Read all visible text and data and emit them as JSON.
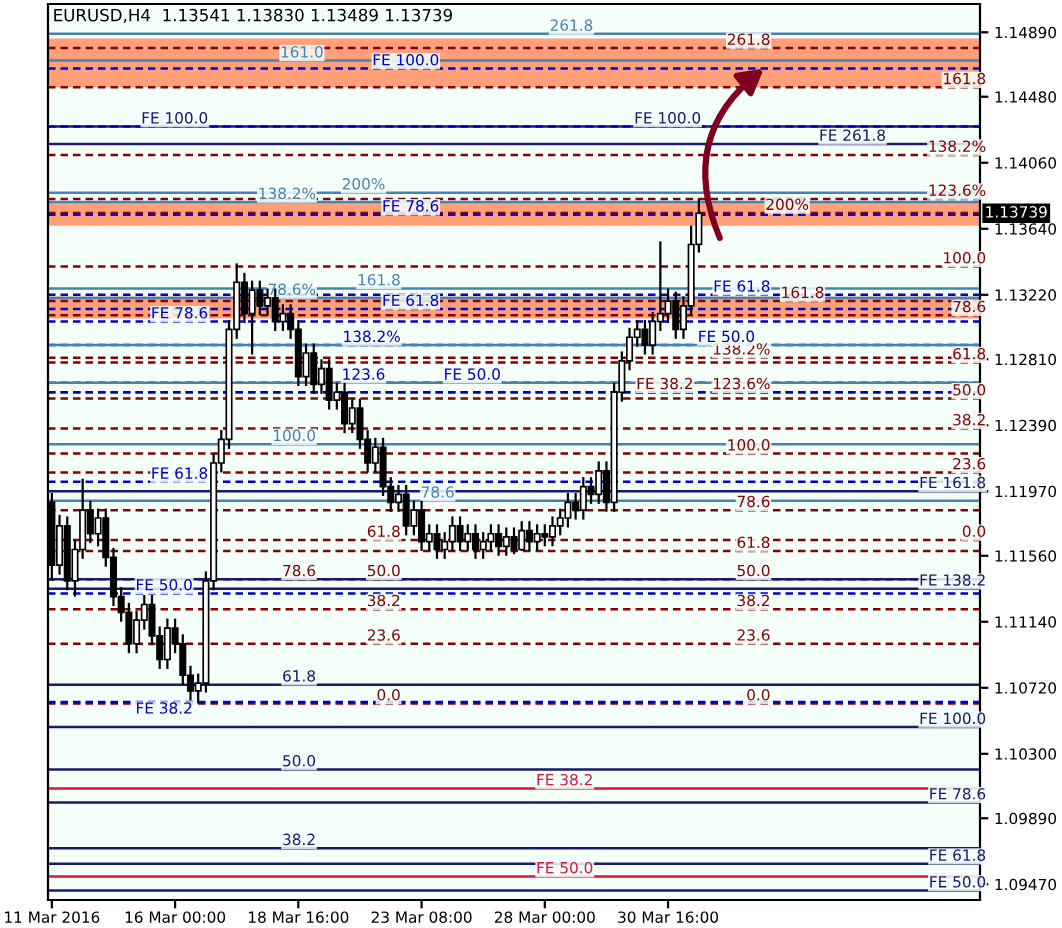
{
  "chart_data": {
    "type": "candlestick",
    "title": "EURUSD,H4  1.13541 1.13830 1.13489 1.13739",
    "grid": false,
    "categories": [
      "11 Mar 2016",
      null,
      null,
      null,
      null,
      null,
      null,
      null,
      null,
      null,
      null,
      null,
      null,
      null,
      null,
      null,
      "16 Mar 00:00",
      null,
      null,
      null,
      null,
      null,
      null,
      null,
      null,
      null,
      null,
      null,
      null,
      null,
      null,
      null,
      "18 Mar 16:00",
      null,
      null,
      null,
      null,
      null,
      null,
      null,
      null,
      null,
      null,
      null,
      null,
      null,
      null,
      null,
      "23 Mar 08:00",
      null,
      null,
      null,
      null,
      null,
      null,
      null,
      null,
      null,
      null,
      null,
      null,
      null,
      null,
      null,
      "28 Mar 00:00",
      null,
      null,
      null,
      null,
      null,
      null,
      null,
      null,
      null,
      null,
      null,
      null,
      null,
      null,
      null,
      "30 Mar 16:00",
      null,
      null,
      null,
      null,
      null,
      null,
      null,
      null,
      null,
      null,
      null,
      null,
      null,
      null,
      null,
      null,
      null,
      null,
      null,
      null,
      null,
      null,
      null,
      null,
      null,
      null,
      null,
      null,
      null,
      null,
      null,
      null,
      null,
      null,
      null,
      null,
      null,
      null,
      null,
      null
    ],
    "ohlc": [
      [
        1.119,
        1.1196,
        1.114,
        1.115
      ],
      [
        1.115,
        1.1182,
        1.1144,
        1.1175
      ],
      [
        1.1175,
        1.1181,
        1.1134,
        1.114
      ],
      [
        1.114,
        1.1166,
        1.113,
        1.116
      ],
      [
        1.116,
        1.1205,
        1.1154,
        1.1185
      ],
      [
        1.1185,
        1.1191,
        1.1164,
        1.117
      ],
      [
        1.117,
        1.1186,
        1.1162,
        1.118
      ],
      [
        1.118,
        1.1186,
        1.1149,
        1.1155
      ],
      [
        1.1155,
        1.1161,
        1.1124,
        1.113
      ],
      [
        1.113,
        1.1136,
        1.1114,
        1.112
      ],
      [
        1.112,
        1.1126,
        1.1094,
        1.11
      ],
      [
        1.11,
        1.1121,
        1.1094,
        1.1115
      ],
      [
        1.1115,
        1.1131,
        1.1109,
        1.1125
      ],
      [
        1.1125,
        1.1131,
        1.1099,
        1.1105
      ],
      [
        1.1105,
        1.1111,
        1.1084,
        1.109
      ],
      [
        1.109,
        1.1116,
        1.1084,
        1.111
      ],
      [
        1.111,
        1.1116,
        1.1094,
        1.11
      ],
      [
        1.11,
        1.1106,
        1.1074,
        1.108
      ],
      [
        1.108,
        1.1086,
        1.1064,
        1.107
      ],
      [
        1.107,
        1.1081,
        1.1062,
        1.1075
      ],
      [
        1.1075,
        1.1146,
        1.1069,
        1.114
      ],
      [
        1.114,
        1.1221,
        1.1134,
        1.1215
      ],
      [
        1.1215,
        1.1236,
        1.1209,
        1.123
      ],
      [
        1.123,
        1.1306,
        1.1224,
        1.13
      ],
      [
        1.13,
        1.1342,
        1.1294,
        1.133
      ],
      [
        1.133,
        1.1336,
        1.1304,
        1.131
      ],
      [
        1.131,
        1.1331,
        1.1284,
        1.1325
      ],
      [
        1.1325,
        1.1331,
        1.1309,
        1.1315
      ],
      [
        1.1315,
        1.1326,
        1.1309,
        1.132
      ],
      [
        1.132,
        1.1326,
        1.1299,
        1.1305
      ],
      [
        1.1305,
        1.1316,
        1.1299,
        1.131
      ],
      [
        1.131,
        1.1316,
        1.1294,
        1.13
      ],
      [
        1.13,
        1.1306,
        1.1264,
        1.127
      ],
      [
        1.127,
        1.1291,
        1.1264,
        1.1285
      ],
      [
        1.1285,
        1.1291,
        1.1259,
        1.1265
      ],
      [
        1.1265,
        1.1281,
        1.1259,
        1.1275
      ],
      [
        1.1275,
        1.1281,
        1.1249,
        1.1255
      ],
      [
        1.1255,
        1.1266,
        1.1249,
        1.126
      ],
      [
        1.126,
        1.1266,
        1.1234,
        1.124
      ],
      [
        1.124,
        1.1256,
        1.1234,
        1.125
      ],
      [
        1.125,
        1.1256,
        1.1224,
        1.123
      ],
      [
        1.123,
        1.1236,
        1.1209,
        1.1215
      ],
      [
        1.1215,
        1.1231,
        1.1209,
        1.1225
      ],
      [
        1.1225,
        1.1231,
        1.1194,
        1.12
      ],
      [
        1.12,
        1.1206,
        1.1184,
        1.119
      ],
      [
        1.119,
        1.1201,
        1.1184,
        1.1195
      ],
      [
        1.1195,
        1.1201,
        1.1169,
        1.1175
      ],
      [
        1.1175,
        1.1191,
        1.1169,
        1.1185
      ],
      [
        1.1185,
        1.1191,
        1.1159,
        1.1165
      ],
      [
        1.1165,
        1.1176,
        1.1159,
        1.117
      ],
      [
        1.117,
        1.1176,
        1.1154,
        1.116
      ],
      [
        1.116,
        1.1171,
        1.1154,
        1.1165
      ],
      [
        1.1165,
        1.1181,
        1.1159,
        1.1175
      ],
      [
        1.1175,
        1.1181,
        1.1159,
        1.1165
      ],
      [
        1.1165,
        1.1176,
        1.1159,
        1.117
      ],
      [
        1.117,
        1.1176,
        1.1154,
        1.116
      ],
      [
        1.116,
        1.1171,
        1.1154,
        1.1165
      ],
      [
        1.1165,
        1.1176,
        1.1159,
        1.117
      ],
      [
        1.117,
        1.1176,
        1.1156,
        1.1162
      ],
      [
        1.1162,
        1.1174,
        1.1156,
        1.1168
      ],
      [
        1.1168,
        1.1174,
        1.1157,
        1.116
      ],
      [
        1.116,
        1.1178,
        1.1159,
        1.1172
      ],
      [
        1.1172,
        1.1178,
        1.1159,
        1.1165
      ],
      [
        1.1165,
        1.1176,
        1.1159,
        1.117
      ],
      [
        1.117,
        1.1176,
        1.1162,
        1.1168
      ],
      [
        1.1168,
        1.1181,
        1.1162,
        1.1175
      ],
      [
        1.1175,
        1.1186,
        1.1169,
        1.118
      ],
      [
        1.118,
        1.1196,
        1.1174,
        1.119
      ],
      [
        1.119,
        1.1196,
        1.1179,
        1.1185
      ],
      [
        1.1185,
        1.1206,
        1.1179,
        1.12
      ],
      [
        1.12,
        1.1206,
        1.1189,
        1.1195
      ],
      [
        1.1195,
        1.1216,
        1.1189,
        1.121
      ],
      [
        1.121,
        1.1216,
        1.1184,
        1.119
      ],
      [
        1.119,
        1.1266,
        1.1184,
        1.126
      ],
      [
        1.126,
        1.1286,
        1.1254,
        1.128
      ],
      [
        1.128,
        1.1301,
        1.1274,
        1.1295
      ],
      [
        1.1295,
        1.1306,
        1.1289,
        1.13
      ],
      [
        1.13,
        1.1306,
        1.1284,
        1.129
      ],
      [
        1.129,
        1.1311,
        1.1284,
        1.1305
      ],
      [
        1.1305,
        1.1356,
        1.1299,
        1.131
      ],
      [
        1.131,
        1.1326,
        1.1304,
        1.1318
      ],
      [
        1.1318,
        1.1324,
        1.1294,
        1.13
      ],
      [
        1.13,
        1.1321,
        1.1294,
        1.1315
      ],
      [
        1.1315,
        1.1366,
        1.1309,
        1.1354
      ],
      [
        1.13541,
        1.1383,
        1.13489,
        1.13739
      ],
      null,
      null,
      null,
      null,
      null,
      null,
      null,
      null,
      null,
      null,
      null,
      null,
      null,
      null,
      null,
      null,
      null,
      null,
      null,
      null,
      null,
      null,
      null,
      null,
      null,
      null,
      null,
      null,
      null,
      null,
      null,
      null,
      null,
      null,
      null,
      null
    ],
    "ylim": [
      1.0937,
      1.1507
    ],
    "yticks": [
      {
        "value": 1.1489,
        "label": "1.14890"
      },
      {
        "value": 1.1448,
        "label": "1.14480"
      },
      {
        "value": 1.1406,
        "label": "1.14060"
      },
      {
        "value": 1.1364,
        "label": "1.13640"
      },
      {
        "value": 1.1322,
        "label": "1.13220"
      },
      {
        "value": 1.1281,
        "label": "1.12810"
      },
      {
        "value": 1.1239,
        "label": "1.12390"
      },
      {
        "value": 1.1197,
        "label": "1.11970"
      },
      {
        "value": 1.1156,
        "label": "1.11560"
      },
      {
        "value": 1.1114,
        "label": "1.11140"
      },
      {
        "value": 1.1072,
        "label": "1.10720"
      },
      {
        "value": 1.103,
        "label": "1.10300"
      },
      {
        "value": 1.0989,
        "label": "1.09890"
      },
      {
        "value": 1.0947,
        "label": "1.09470"
      }
    ],
    "bands": [
      {
        "axis": "y",
        "from": 1.1454,
        "to": 1.1485,
        "color": "#ffa07a"
      },
      {
        "axis": "y",
        "from": 1.1307,
        "to": 1.1321,
        "color": "#ffa07a"
      },
      {
        "axis": "y",
        "from": 1.1366,
        "to": 1.1381,
        "color": "#ffa07a"
      }
    ],
    "ref_lines": [
      {
        "axis": "y",
        "value": 1.1479,
        "color": "#8b0000",
        "line_style": "dashed"
      },
      {
        "axis": "y",
        "value": 1.1454,
        "color": "#8b0000",
        "line_style": "dashed"
      },
      {
        "axis": "y",
        "value": 1.1411,
        "color": "#8b0000",
        "line_style": "dashed"
      },
      {
        "axis": "y",
        "value": 1.1383,
        "color": "#8b0000",
        "line_style": "dashed"
      },
      {
        "axis": "y",
        "value": 1.1374,
        "color": "#8b0000",
        "line_style": "dashed"
      },
      {
        "axis": "y",
        "value": 1.134,
        "color": "#8b0000",
        "line_style": "dashed"
      },
      {
        "axis": "y",
        "value": 1.1318,
        "color": "#8b0000",
        "line_style": "dashed"
      },
      {
        "axis": "y",
        "value": 1.1309,
        "color": "#8b0000",
        "line_style": "dashed"
      },
      {
        "axis": "y",
        "value": 1.1282,
        "color": "#8b0000",
        "line_style": "dashed"
      },
      {
        "axis": "y",
        "value": 1.1279,
        "color": "#8b0000",
        "line_style": "dashed"
      },
      {
        "axis": "y",
        "value": 1.126,
        "color": "#8b0000",
        "line_style": "dashed"
      },
      {
        "axis": "y",
        "value": 1.1256,
        "color": "#8b0000",
        "line_style": "dashed"
      },
      {
        "axis": "y",
        "value": 1.1237,
        "color": "#8b0000",
        "line_style": "dashed"
      },
      {
        "axis": "y",
        "value": 1.1221,
        "color": "#8b0000",
        "line_style": "dashed"
      },
      {
        "axis": "y",
        "value": 1.1209,
        "color": "#8b0000",
        "line_style": "dashed"
      },
      {
        "axis": "y",
        "value": 1.1185,
        "color": "#8b0000",
        "line_style": "dashed"
      },
      {
        "axis": "y",
        "value": 1.1166,
        "color": "#8b0000",
        "line_style": "dashed"
      },
      {
        "axis": "y",
        "value": 1.1159,
        "color": "#8b0000",
        "line_style": "dashed"
      },
      {
        "axis": "y",
        "value": 1.1141,
        "color": "#8b0000",
        "line_style": "dashed"
      },
      {
        "axis": "y",
        "value": 1.1122,
        "color": "#8b0000",
        "line_style": "dashed"
      },
      {
        "axis": "y",
        "value": 1.11,
        "color": "#8b0000",
        "line_style": "dashed"
      },
      {
        "axis": "y",
        "value": 1.1062,
        "color": "#8b0000",
        "line_style": "dashed"
      },
      {
        "axis": "y",
        "value": 1.1418,
        "color": "#191970",
        "line_style": "solid"
      },
      {
        "axis": "y",
        "value": 1.1197,
        "color": "#191970",
        "line_style": "solid"
      },
      {
        "axis": "y",
        "value": 1.1135,
        "color": "#191970",
        "line_style": "solid"
      },
      {
        "axis": "y",
        "value": 1.1047,
        "color": "#191970",
        "line_style": "solid"
      },
      {
        "axis": "y",
        "value": 1.0999,
        "color": "#191970",
        "line_style": "solid"
      },
      {
        "axis": "y",
        "value": 1.096,
        "color": "#191970",
        "line_style": "solid"
      },
      {
        "axis": "y",
        "value": 1.0943,
        "color": "#191970",
        "line_style": "solid"
      },
      {
        "axis": "y",
        "value": 1.1429,
        "color": "#191970",
        "line_style": "solid"
      },
      {
        "axis": "y",
        "value": 1.1074,
        "color": "#191970",
        "line_style": "solid"
      },
      {
        "axis": "y",
        "value": 1.102,
        "color": "#191970",
        "line_style": "solid"
      },
      {
        "axis": "y",
        "value": 1.097,
        "color": "#191970",
        "line_style": "solid"
      },
      {
        "axis": "y",
        "value": 1.1141,
        "color": "#191970",
        "line_style": "solid"
      },
      {
        "axis": "y",
        "value": 1.1466,
        "color": "#0000cd",
        "line_style": "dashed"
      },
      {
        "axis": "y",
        "value": 1.1429,
        "color": "#0000cd",
        "line_style": "dashed"
      },
      {
        "axis": "y",
        "value": 1.1373,
        "color": "#0000cd",
        "line_style": "dashed"
      },
      {
        "axis": "y",
        "value": 1.1305,
        "color": "#0000cd",
        "line_style": "dashed"
      },
      {
        "axis": "y",
        "value": 1.1313,
        "color": "#0000cd",
        "line_style": "dashed"
      },
      {
        "axis": "y",
        "value": 1.1322,
        "color": "#0000cd",
        "line_style": "dashed"
      },
      {
        "axis": "y",
        "value": 1.1266,
        "color": "#0000cd",
        "line_style": "dashed"
      },
      {
        "axis": "y",
        "value": 1.129,
        "color": "#0000cd",
        "line_style": "dashed"
      },
      {
        "axis": "y",
        "value": 1.126,
        "color": "#0000cd",
        "line_style": "dashed"
      },
      {
        "axis": "y",
        "value": 1.1203,
        "color": "#0000cd",
        "line_style": "dashed"
      },
      {
        "axis": "y",
        "value": 1.1132,
        "color": "#0000cd",
        "line_style": "dashed"
      },
      {
        "axis": "y",
        "value": 1.1063,
        "color": "#0000cd",
        "line_style": "dashed"
      },
      {
        "axis": "y",
        "value": 1.1488,
        "color": "#4682b4",
        "line_style": "solid"
      },
      {
        "axis": "y",
        "value": 1.1471,
        "color": "#4682b4",
        "line_style": "solid"
      },
      {
        "axis": "y",
        "value": 1.1387,
        "color": "#4682b4",
        "line_style": "solid"
      },
      {
        "axis": "y",
        "value": 1.1381,
        "color": "#4682b4",
        "line_style": "solid"
      },
      {
        "axis": "y",
        "value": 1.132,
        "color": "#4682b4",
        "line_style": "solid"
      },
      {
        "axis": "y",
        "value": 1.1326,
        "color": "#4682b4",
        "line_style": "solid"
      },
      {
        "axis": "y",
        "value": 1.129,
        "color": "#4682b4",
        "line_style": "solid"
      },
      {
        "axis": "y",
        "value": 1.1266,
        "color": "#4682b4",
        "line_style": "solid"
      },
      {
        "axis": "y",
        "value": 1.1227,
        "color": "#4682b4",
        "line_style": "solid"
      },
      {
        "axis": "y",
        "value": 1.1191,
        "color": "#4682b4",
        "line_style": "solid"
      },
      {
        "axis": "y",
        "value": 1.1008,
        "color": "#dc143c",
        "line_style": "solid"
      },
      {
        "axis": "y",
        "value": 1.0952,
        "color": "#dc143c",
        "line_style": "solid"
      }
    ],
    "annotations": [
      {
        "text": "261.8",
        "y": 1.1479
      },
      {
        "text": "161.8",
        "y": 1.1454
      },
      {
        "text": "138.2%",
        "y": 1.1411
      },
      {
        "text": "123.6%",
        "y": 1.1383
      },
      {
        "text": "200%",
        "y": 1.1374
      },
      {
        "text": "100.0",
        "y": 1.134
      },
      {
        "text": "161.8",
        "y": 1.1318
      },
      {
        "text": "78.6",
        "y": 1.1309
      },
      {
        "text": "138.2%",
        "y": 1.1282
      },
      {
        "text": "61.8",
        "y": 1.1279
      },
      {
        "text": "123.6%",
        "y": 1.126
      },
      {
        "text": "50.0",
        "y": 1.1256
      },
      {
        "text": "38.2",
        "y": 1.1237
      },
      {
        "text": "100.0",
        "y": 1.1221
      },
      {
        "text": "23.6",
        "y": 1.1209
      },
      {
        "text": "78.6",
        "y": 1.1185
      },
      {
        "text": "0.0",
        "y": 1.1166
      },
      {
        "text": "61.8",
        "y": 1.1159
      },
      {
        "text": "50.0",
        "y": 1.1141
      },
      {
        "text": "38.2",
        "y": 1.1122
      },
      {
        "text": "23.6",
        "y": 1.11
      },
      {
        "text": "0.0",
        "y": 1.1062
      },
      {
        "text": "FE 261.8",
        "y": 1.1418
      },
      {
        "text": "FE 161.8",
        "y": 1.1197
      },
      {
        "text": "FE 138.2",
        "y": 1.1135
      },
      {
        "text": "FE 100.0",
        "y": 1.1047
      },
      {
        "text": "FE 78.6",
        "y": 1.0999
      },
      {
        "text": "FE 61.8",
        "y": 1.096
      },
      {
        "text": "FE 50.0",
        "y": 1.0943
      },
      {
        "text": "FE 100.0",
        "y": 1.1429
      },
      {
        "text": "61.8",
        "y": 1.1074
      },
      {
        "text": "50.0",
        "y": 1.102
      },
      {
        "text": "38.2",
        "y": 1.097
      },
      {
        "text": "78.6",
        "y": 1.1141
      },
      {
        "text": "FE 100.0",
        "y": 1.1466
      },
      {
        "text": "FE 100.0",
        "y": 1.1429
      },
      {
        "text": "FE 78.6",
        "y": 1.1373
      },
      {
        "text": "FE 78.6",
        "y": 1.1305
      },
      {
        "text": "FE 61.8",
        "y": 1.1313
      },
      {
        "text": "FE 61.8",
        "y": 1.1322
      },
      {
        "text": "FE 50.0",
        "y": 1.1266
      },
      {
        "text": "FE 50.0",
        "y": 1.129
      },
      {
        "text": "FE 38.2",
        "y": 1.126
      },
      {
        "text": "FE 61.8",
        "y": 1.1203
      },
      {
        "text": "FE 50.0",
        "y": 1.1132
      },
      {
        "text": "FE 38.2",
        "y": 1.1063
      },
      {
        "text": "261.8",
        "y": 1.1488
      },
      {
        "text": "161.0",
        "y": 1.1471
      },
      {
        "text": "200%",
        "y": 1.1387
      },
      {
        "text": "138.2%",
        "y": 1.1381
      },
      {
        "text": "78.6%",
        "y": 1.132
      },
      {
        "text": "161.8",
        "y": 1.1326
      },
      {
        "text": "138.2%",
        "y": 1.129
      },
      {
        "text": "123.6",
        "y": 1.1266
      },
      {
        "text": "100.0",
        "y": 1.1227
      },
      {
        "text": "78.6",
        "y": 1.1191
      },
      {
        "text": "61.8",
        "y": 1.1166
      },
      {
        "text": "50.0",
        "y": 1.1141
      },
      {
        "text": "38.2",
        "y": 1.1122
      },
      {
        "text": "23.6",
        "y": 1.11
      },
      {
        "text": "0.0",
        "y": 1.1062
      },
      {
        "text": "FE 38.2",
        "y": 1.1008
      },
      {
        "text": "FE 50.0",
        "y": 1.0952
      },
      "1.13739"
    ]
  }
}
